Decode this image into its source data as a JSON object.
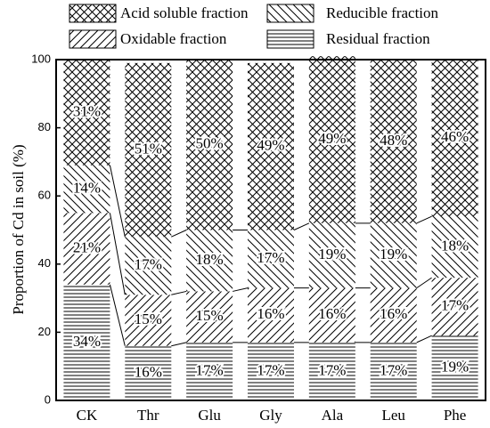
{
  "chart_data": {
    "type": "bar",
    "stacked": true,
    "ylabel": "Proportion of Cd in soil (%)",
    "categories": [
      "CK",
      "Thr",
      "Glu",
      "Gly",
      "Ala",
      "Leu",
      "Phe"
    ],
    "series": [
      {
        "name": "Residual fraction",
        "color": "#000000",
        "hatch": "horizontal",
        "values": [
          34,
          16,
          17,
          17,
          17,
          17,
          19
        ],
        "value_labels": [
          "34%",
          "16%",
          "17%",
          "17%",
          "17%",
          "17%",
          "19%"
        ]
      },
      {
        "name": "Oxidable fraction",
        "color": "#000000",
        "hatch": "slash",
        "values": [
          21,
          15,
          15,
          16,
          16,
          16,
          17
        ],
        "value_labels": [
          "21%",
          "15%",
          "15%",
          "16%",
          "16%",
          "16%",
          "17%"
        ]
      },
      {
        "name": "Reducible fraction",
        "color": "#000000",
        "hatch": "backslash",
        "values": [
          14,
          17,
          18,
          17,
          19,
          19,
          18
        ],
        "value_labels": [
          "14%",
          "17%",
          "18%",
          "17%",
          "19%",
          "19%",
          "18%"
        ]
      },
      {
        "name": "Acid soluble fraction",
        "color": "#000000",
        "hatch": "cross",
        "values": [
          31,
          51,
          50,
          49,
          49,
          48,
          46
        ],
        "value_labels": [
          "31%",
          "51%",
          "50%",
          "49%",
          "49%",
          "48%",
          "46%"
        ]
      }
    ],
    "ylim": [
      0,
      100
    ],
    "yticks": [
      0,
      20,
      40,
      60,
      80,
      100
    ]
  }
}
